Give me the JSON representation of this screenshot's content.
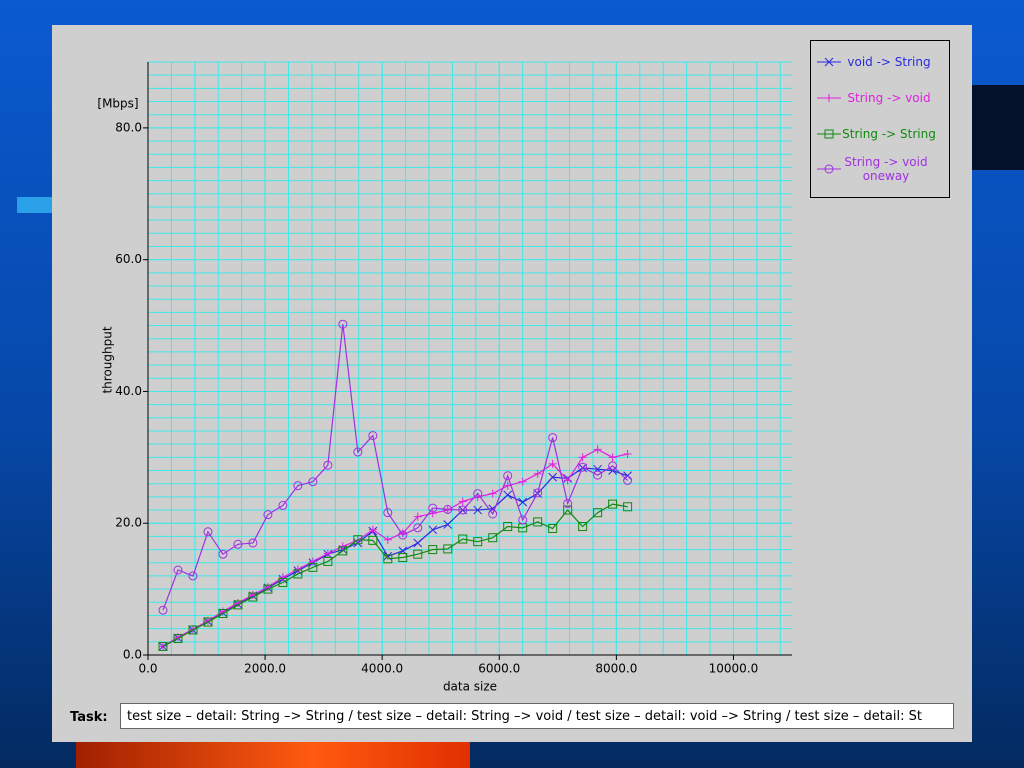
{
  "chart_data": {
    "type": "line",
    "x_label": "data size",
    "y_label": "throughput",
    "y_unit": "[Mbps]",
    "x": [
      256,
      512,
      768,
      1024,
      1280,
      1536,
      1792,
      2048,
      2304,
      2560,
      2816,
      3072,
      3328,
      3584,
      3840,
      4096,
      4352,
      4608,
      4864,
      5120,
      5376,
      5632,
      5888,
      6144,
      6400,
      6656,
      6912,
      7168,
      7424,
      7680,
      7936,
      8192
    ],
    "series": [
      {
        "name": "void -> String",
        "color": "#2a2ae0",
        "marker": "x",
        "values": [
          1.3,
          2.6,
          3.8,
          5.1,
          6.4,
          7.7,
          9.0,
          10.2,
          11.5,
          12.8,
          14.0,
          15.3,
          16.0,
          17.0,
          18.8,
          15.0,
          15.8,
          17.0,
          19.0,
          19.8,
          22.0,
          22.0,
          22.2,
          24.3,
          23.2,
          24.5,
          27.0,
          26.8,
          28.4,
          28.2,
          28.0,
          27.2
        ]
      },
      {
        "name": "String -> void",
        "color": "#e020e0",
        "marker": "plus",
        "values": [
          1.3,
          2.7,
          3.9,
          5.2,
          6.6,
          7.9,
          9.1,
          10.3,
          11.8,
          13.0,
          14.2,
          15.4,
          16.5,
          17.4,
          19.0,
          17.5,
          18.5,
          21.0,
          21.5,
          22.0,
          23.3,
          24.0,
          24.5,
          25.7,
          26.3,
          27.5,
          29.0,
          26.5,
          30.0,
          31.2,
          30.0,
          30.5
        ]
      },
      {
        "name": "String -> String",
        "color": "#108a10",
        "marker": "square",
        "values": [
          1.3,
          2.5,
          3.8,
          5.0,
          6.3,
          7.6,
          8.8,
          10.0,
          11.0,
          12.3,
          13.3,
          14.2,
          15.8,
          17.5,
          17.4,
          14.6,
          14.8,
          15.3,
          16.0,
          16.1,
          17.6,
          17.2,
          17.8,
          19.5,
          19.3,
          20.2,
          19.2,
          22.0,
          19.5,
          21.6,
          22.9,
          22.5
        ]
      },
      {
        "name": "String -> void oneway",
        "color": "#a030e0",
        "marker": "circle",
        "values": [
          6.8,
          12.9,
          12.0,
          18.7,
          15.3,
          16.8,
          17.0,
          21.3,
          22.7,
          25.7,
          26.3,
          28.8,
          50.2,
          30.8,
          33.3,
          21.6,
          18.2,
          19.3,
          22.3,
          22.1,
          22.0,
          24.5,
          21.4,
          27.2,
          20.5,
          24.6,
          33.0,
          23.0,
          28.5,
          27.3,
          28.7,
          26.5
        ]
      }
    ],
    "xlim": [
      0,
      11000
    ],
    "ylim": [
      0,
      90
    ],
    "xticks": [
      {
        "value": 0,
        "label": "0.0"
      },
      {
        "value": 2000,
        "label": "2000.0"
      },
      {
        "value": 4000,
        "label": "4000.0"
      },
      {
        "value": 6000,
        "label": "6000.0"
      },
      {
        "value": 8000,
        "label": "8000.0"
      },
      {
        "value": 10000,
        "label": "10000.0"
      }
    ],
    "yticks": [
      {
        "value": 0,
        "label": "0.0"
      },
      {
        "value": 20,
        "label": "20.0"
      },
      {
        "value": 40,
        "label": "40.0"
      },
      {
        "value": 60,
        "label": "60.0"
      },
      {
        "value": 80,
        "label": "80.0"
      }
    ],
    "grid": true,
    "grid_color": "#40e8e8",
    "x_minor_divisions": 5,
    "y_minor_divisions": 10,
    "legend": "top-right"
  },
  "task": {
    "label": "Task:",
    "text": "test size – detail: String –> String / test size – detail: String –> void / test size – detail: void –> String / test size – detail: St"
  }
}
